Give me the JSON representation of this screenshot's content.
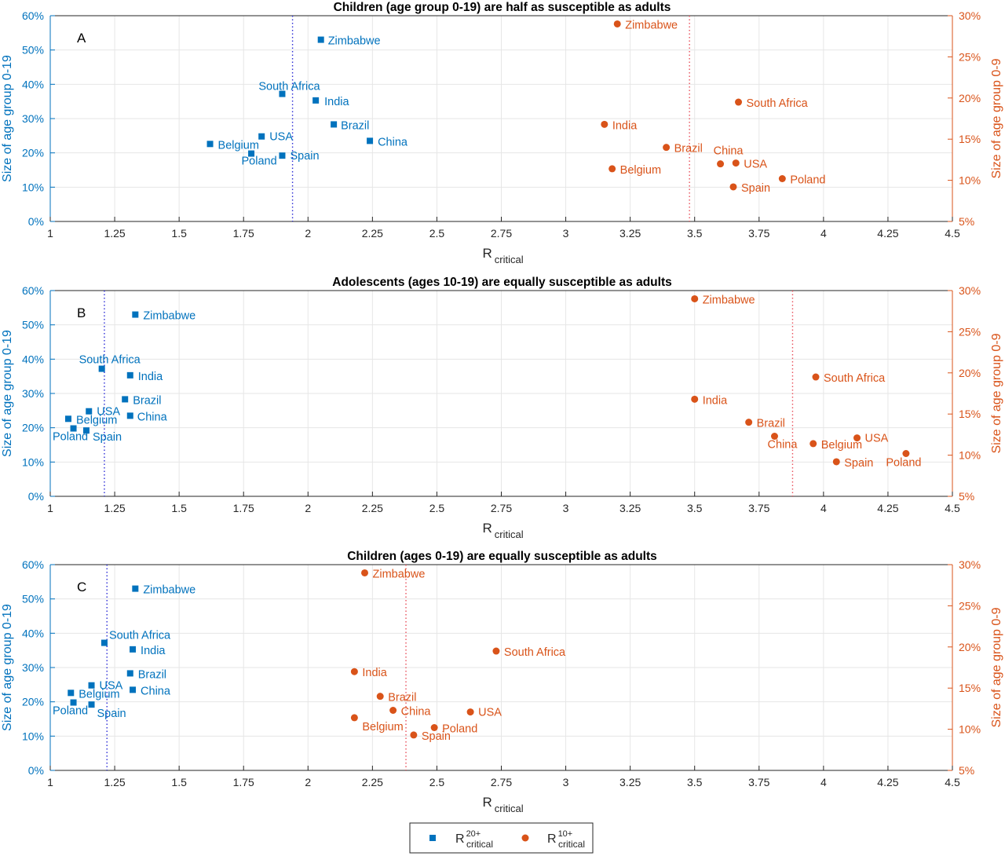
{
  "chart_data": [
    {
      "type": "scatter",
      "title": "Children (age group 0-19) are half as susceptible as adults",
      "panel_label": "A",
      "xlabel_main": "R",
      "xlabel_sub": "critical",
      "ylabel_left": "Size of age group 0-19",
      "ylabel_right": "Size of age group 0-9",
      "xlim": [
        1,
        4.5
      ],
      "xticks": [
        "1",
        "1.25",
        "1.5",
        "1.75",
        "2",
        "2.25",
        "2.5",
        "2.75",
        "3",
        "3.25",
        "3.5",
        "3.75",
        "4",
        "4.25",
        "4.5"
      ],
      "ylim_left": [
        0,
        60
      ],
      "yticks_left": [
        "0%",
        "10%",
        "20%",
        "30%",
        "40%",
        "50%",
        "60%"
      ],
      "ylim_right": [
        5,
        30
      ],
      "yticks_right": [
        "5%",
        "10%",
        "15%",
        "20%",
        "25%",
        "30%"
      ],
      "grid": true,
      "series": [
        {
          "name_main": "R",
          "name_sup": "20+",
          "name_sub": "critical",
          "axis": "left",
          "color": "#0072bd",
          "marker": "square",
          "threshold": 1.94,
          "points": [
            {
              "label": "Zimbabwe",
              "x": 2.05,
              "y": 53
            },
            {
              "label": "South Africa",
              "x": 1.9,
              "y": 37.2
            },
            {
              "label": "India",
              "x": 2.03,
              "y": 35.3
            },
            {
              "label": "Brazil",
              "x": 2.1,
              "y": 28.3
            },
            {
              "label": "China",
              "x": 2.24,
              "y": 23.5
            },
            {
              "label": "USA",
              "x": 1.82,
              "y": 24.8
            },
            {
              "label": "Belgium",
              "x": 1.62,
              "y": 22.6
            },
            {
              "label": "Spain",
              "x": 1.9,
              "y": 19.2
            },
            {
              "label": "Poland",
              "x": 1.78,
              "y": 19.8
            }
          ]
        },
        {
          "name_main": "R",
          "name_sup": "10+",
          "name_sub": "critical",
          "axis": "right",
          "color": "#d95319",
          "marker": "circle",
          "threshold": 3.48,
          "points": [
            {
              "label": "Zimbabwe",
              "x": 3.2,
              "y": 29.0
            },
            {
              "label": "South Africa",
              "x": 3.67,
              "y": 19.5
            },
            {
              "label": "India",
              "x": 3.15,
              "y": 16.8
            },
            {
              "label": "Brazil",
              "x": 3.39,
              "y": 14.0
            },
            {
              "label": "China",
              "x": 3.6,
              "y": 12.0
            },
            {
              "label": "USA",
              "x": 3.66,
              "y": 12.1
            },
            {
              "label": "Belgium",
              "x": 3.18,
              "y": 11.4
            },
            {
              "label": "Poland",
              "x": 3.84,
              "y": 10.2
            },
            {
              "label": "Spain",
              "x": 3.65,
              "y": 9.2
            }
          ]
        }
      ]
    },
    {
      "type": "scatter",
      "title": "Adolescents (ages 10-19) are equally susceptible as adults",
      "panel_label": "B",
      "xlabel_main": "R",
      "xlabel_sub": "critical",
      "ylabel_left": "Size of age group 0-19",
      "ylabel_right": "Size of age group 0-9",
      "xlim": [
        1,
        4.5
      ],
      "xticks": [
        "1",
        "1.25",
        "1.5",
        "1.75",
        "2",
        "2.25",
        "2.5",
        "2.75",
        "3",
        "3.25",
        "3.5",
        "3.75",
        "4",
        "4.25",
        "4.5"
      ],
      "ylim_left": [
        0,
        60
      ],
      "yticks_left": [
        "0%",
        "10%",
        "20%",
        "30%",
        "40%",
        "50%",
        "60%"
      ],
      "ylim_right": [
        5,
        30
      ],
      "yticks_right": [
        "5%",
        "10%",
        "15%",
        "20%",
        "25%",
        "30%"
      ],
      "grid": true,
      "series": [
        {
          "name_main": "R",
          "name_sup": "20+",
          "name_sub": "critical",
          "axis": "left",
          "color": "#0072bd",
          "marker": "square",
          "threshold": 1.21,
          "points": [
            {
              "label": "Zimbabwe",
              "x": 1.33,
              "y": 53
            },
            {
              "label": "South Africa",
              "x": 1.2,
              "y": 37.2
            },
            {
              "label": "India",
              "x": 1.31,
              "y": 35.3
            },
            {
              "label": "Brazil",
              "x": 1.29,
              "y": 28.3
            },
            {
              "label": "USA",
              "x": 1.15,
              "y": 24.8
            },
            {
              "label": "China",
              "x": 1.31,
              "y": 23.5
            },
            {
              "label": "Belgium",
              "x": 1.07,
              "y": 22.6
            },
            {
              "label": "Spain",
              "x": 1.14,
              "y": 19.2
            },
            {
              "label": "Poland",
              "x": 1.09,
              "y": 19.8
            }
          ]
        },
        {
          "name_main": "R",
          "name_sup": "10+",
          "name_sub": "critical",
          "axis": "right",
          "color": "#d95319",
          "marker": "circle",
          "threshold": 3.88,
          "points": [
            {
              "label": "Zimbabwe",
              "x": 3.5,
              "y": 29.0
            },
            {
              "label": "South Africa",
              "x": 3.97,
              "y": 19.5
            },
            {
              "label": "India",
              "x": 3.5,
              "y": 16.8
            },
            {
              "label": "Brazil",
              "x": 3.71,
              "y": 14.0
            },
            {
              "label": "China",
              "x": 3.81,
              "y": 12.3
            },
            {
              "label": "USA",
              "x": 4.13,
              "y": 12.1
            },
            {
              "label": "Belgium",
              "x": 3.96,
              "y": 11.4
            },
            {
              "label": "Spain",
              "x": 4.05,
              "y": 9.2
            },
            {
              "label": "Poland",
              "x": 4.32,
              "y": 10.2
            }
          ]
        }
      ]
    },
    {
      "type": "scatter",
      "title": "Children (ages 0-19) are equally susceptible as adults",
      "panel_label": "C",
      "xlabel_main": "R",
      "xlabel_sub": "critical",
      "ylabel_left": "Size of age group 0-19",
      "ylabel_right": "Size of age group 0-9",
      "xlim": [
        1,
        4.5
      ],
      "xticks": [
        "1",
        "1.25",
        "1.5",
        "1.75",
        "2",
        "2.25",
        "2.5",
        "2.75",
        "3",
        "3.25",
        "3.5",
        "3.75",
        "4",
        "4.25",
        "4.5"
      ],
      "ylim_left": [
        0,
        60
      ],
      "yticks_left": [
        "0%",
        "10%",
        "20%",
        "30%",
        "40%",
        "50%",
        "60%"
      ],
      "ylim_right": [
        5,
        30
      ],
      "yticks_right": [
        "5%",
        "10%",
        "15%",
        "20%",
        "25%",
        "30%"
      ],
      "grid": true,
      "series": [
        {
          "name_main": "R",
          "name_sup": "20+",
          "name_sub": "critical",
          "axis": "left",
          "color": "#0072bd",
          "marker": "square",
          "threshold": 1.22,
          "points": [
            {
              "label": "Zimbabwe",
              "x": 1.33,
              "y": 53
            },
            {
              "label": "South Africa",
              "x": 1.21,
              "y": 37.2
            },
            {
              "label": "India",
              "x": 1.32,
              "y": 35.3
            },
            {
              "label": "Brazil",
              "x": 1.31,
              "y": 28.3
            },
            {
              "label": "USA",
              "x": 1.16,
              "y": 24.8
            },
            {
              "label": "China",
              "x": 1.32,
              "y": 23.5
            },
            {
              "label": "Belgium",
              "x": 1.08,
              "y": 22.6
            },
            {
              "label": "Spain",
              "x": 1.16,
              "y": 19.2
            },
            {
              "label": "Poland",
              "x": 1.09,
              "y": 19.8
            }
          ]
        },
        {
          "name_main": "R",
          "name_sup": "10+",
          "name_sub": "critical",
          "axis": "right",
          "color": "#d95319",
          "marker": "circle",
          "threshold": 2.38,
          "points": [
            {
              "label": "Zimbabwe",
              "x": 2.22,
              "y": 29.0
            },
            {
              "label": "South Africa",
              "x": 2.73,
              "y": 19.5
            },
            {
              "label": "India",
              "x": 2.18,
              "y": 17.0
            },
            {
              "label": "Brazil",
              "x": 2.28,
              "y": 14.0
            },
            {
              "label": "China",
              "x": 2.33,
              "y": 12.3
            },
            {
              "label": "USA",
              "x": 2.63,
              "y": 12.1
            },
            {
              "label": "Belgium",
              "x": 2.18,
              "y": 11.4
            },
            {
              "label": "Poland",
              "x": 2.49,
              "y": 10.2
            },
            {
              "label": "Spain",
              "x": 2.41,
              "y": 9.3
            }
          ]
        }
      ]
    }
  ]
}
